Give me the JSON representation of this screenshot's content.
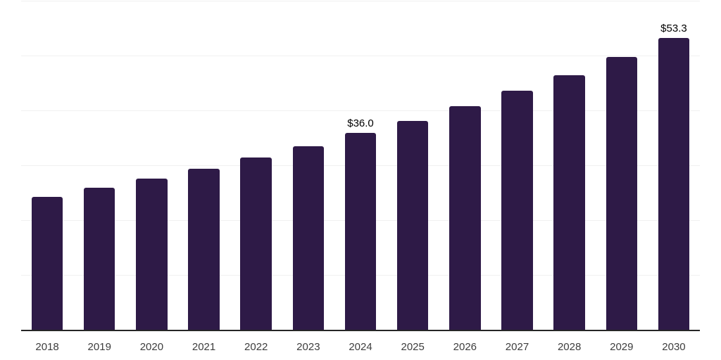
{
  "chart": {
    "background_color": "#ffffff",
    "bar_color": "#2e1a47",
    "grid_color": "#f0f0f0",
    "axis_color": "#262626",
    "tick_color": "#3d3d3d",
    "value_label_color": "#000000"
  },
  "chart_data": {
    "type": "bar",
    "title": "",
    "xlabel": "",
    "ylabel": "",
    "categories": [
      "2018",
      "2019",
      "2020",
      "2021",
      "2022",
      "2023",
      "2024",
      "2025",
      "2026",
      "2027",
      "2028",
      "2029",
      "2030"
    ],
    "values": [
      24.4,
      26.0,
      27.7,
      29.5,
      31.5,
      33.6,
      36.0,
      38.2,
      40.9,
      43.7,
      46.6,
      49.9,
      53.3
    ],
    "data_labels": {
      "2024": "$36.0",
      "2030": "$53.3"
    },
    "ylim": [
      0,
      60
    ],
    "grid_step": 10,
    "grid": "horizontal",
    "y_axis_labels_visible": false,
    "legend": "none",
    "bar_corner_radius": 3
  }
}
